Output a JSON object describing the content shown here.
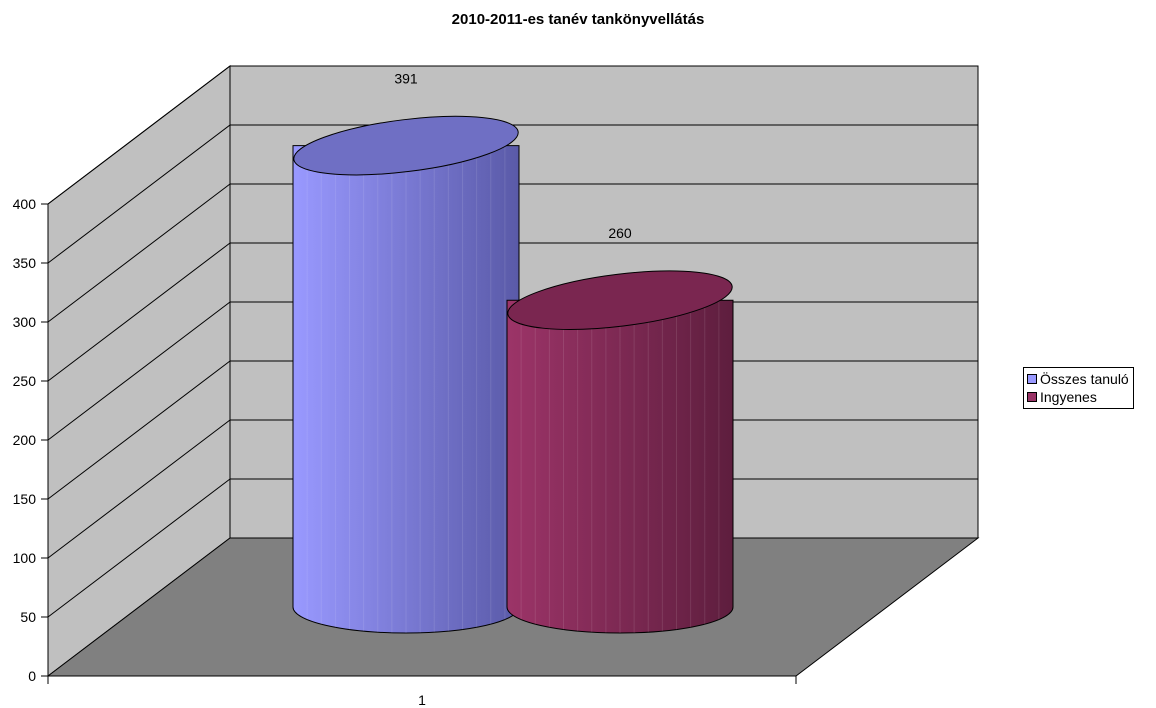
{
  "chart_data": {
    "type": "bar",
    "shape": "3d-cylinder",
    "title": "2010-2011-es tanév tankönyvellátás",
    "xlabel": "",
    "ylabel": "",
    "categories": [
      "1"
    ],
    "ylim": [
      0,
      400
    ],
    "yticks": [
      "0",
      "50",
      "100",
      "150",
      "200",
      "250",
      "300",
      "350",
      "400"
    ],
    "grid": true,
    "legend_position": "right",
    "series": [
      {
        "name": "Összes tanuló",
        "values": [
          391
        ],
        "label": "391",
        "color": "#9999ff"
      },
      {
        "name": "Ingyenes",
        "values": [
          260
        ],
        "label": "260",
        "color": "#993366"
      }
    ],
    "colors": {
      "wall": "#c0c0c0",
      "floor": "#808080"
    }
  }
}
